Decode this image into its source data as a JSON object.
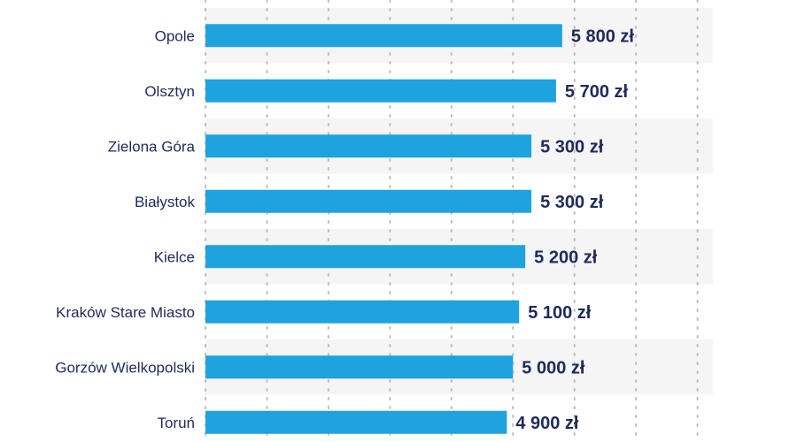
{
  "chart_data": {
    "type": "bar",
    "orientation": "horizontal",
    "categories": [
      "Opole",
      "Olsztyn",
      "Zielona Góra",
      "Białystok",
      "Kielce",
      "Kraków Stare Miasto",
      "Gorzów Wielkopolski",
      "Toruń"
    ],
    "values": [
      5800,
      5700,
      5300,
      5300,
      5200,
      5100,
      5000,
      4900
    ],
    "value_labels": [
      "5 800 zł",
      "5 700 zł",
      "5 300 zł",
      "5 300 zł",
      "5 200 zł",
      "5 100 zł",
      "5 000 zł",
      "4 900 zł"
    ],
    "title": "",
    "xlabel": "",
    "ylabel": "",
    "xlim": [
      0,
      8250
    ],
    "grid": true,
    "legend": "none",
    "colors": {
      "bar": "#1ea3df",
      "label": "#1f2a5c",
      "band": "#f5f5f5",
      "grid": "#bdbdbd"
    }
  }
}
